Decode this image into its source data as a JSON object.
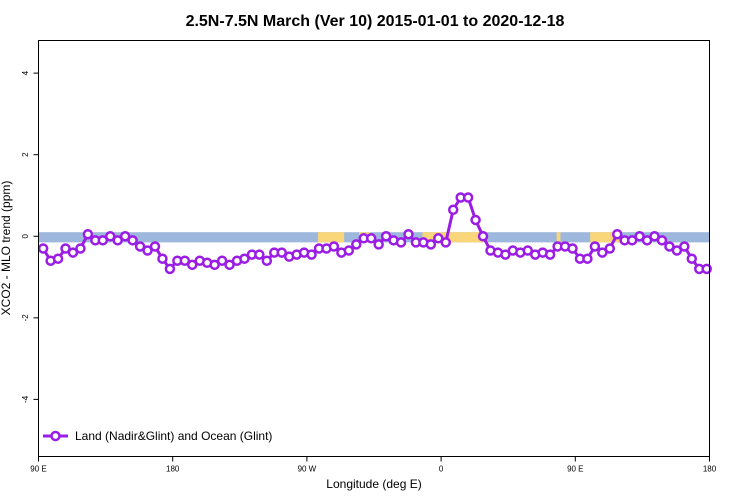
{
  "chart_data": {
    "type": "line",
    "title": "2.5N-7.5N March (Ver 10)   2015-01-01 to 2020-12-18",
    "xlabel": "Longitude (deg E)",
    "ylabel": "XCO2 - MLO trend (ppm)",
    "xlim": [
      90,
      450
    ],
    "ylim": [
      -5.4,
      4.8
    ],
    "x_ticks": [
      {
        "value": 90,
        "label": "90 E"
      },
      {
        "value": 162,
        "label": "180"
      },
      {
        "value": 234,
        "label": "90 W"
      },
      {
        "value": 306,
        "label": "0"
      },
      {
        "value": 378,
        "label": "90 E"
      },
      {
        "value": 450,
        "label": "180"
      }
    ],
    "y_ticks": [
      {
        "value": 4,
        "label": "4"
      },
      {
        "value": 2,
        "label": "2"
      },
      {
        "value": 0,
        "label": "0"
      },
      {
        "value": -2,
        "label": "-2"
      },
      {
        "value": -4,
        "label": "-4"
      }
    ],
    "map_strip": {
      "y_range": [
        -0.15,
        0.1
      ],
      "ocean_color": "#9db8dc",
      "land_color": "#fad67a",
      "land_spans": [
        [
          240,
          254
        ],
        [
          262,
          268
        ],
        [
          296,
          330
        ],
        [
          368,
          370
        ],
        [
          386,
          402
        ]
      ]
    },
    "series": [
      {
        "name": "Land (Nadir&Glint) and Ocean (Glint)",
        "color": "#9b1de4",
        "x": [
          92.5,
          96.5,
          100.5,
          104.5,
          108.5,
          112.5,
          116.5,
          120.5,
          124.5,
          128.5,
          132.5,
          136.5,
          140.5,
          144.5,
          148.5,
          152.5,
          156.5,
          160.5,
          164.5,
          168.5,
          172.5,
          176.5,
          180.5,
          184.5,
          188.5,
          192.5,
          196.5,
          200.5,
          204.5,
          208.5,
          212.5,
          216.5,
          220.5,
          224.5,
          228.5,
          232.5,
          236.5,
          240.5,
          244.5,
          248.5,
          252.5,
          256.5,
          260.5,
          264.5,
          268.5,
          272.5,
          276.5,
          280.5,
          284.5,
          288.5,
          292.5,
          296.5,
          300.5,
          304.5,
          308.5,
          312.5,
          316.5,
          320.5,
          324.5,
          328.5,
          332.5,
          336.5,
          340.5,
          344.5,
          348.5,
          352.5,
          356.5,
          360.5,
          364.5,
          368.5,
          372.5,
          376.5,
          380.5,
          384.5,
          388.5,
          392.5,
          396.5,
          400.5,
          404.5,
          408.5,
          412.5,
          416.5,
          420.5,
          424.5,
          428.5,
          432.5,
          436.5,
          440.5,
          444.5,
          448.5
        ],
        "y": [
          -0.3,
          -0.6,
          -0.55,
          -0.3,
          -0.4,
          -0.3,
          0.05,
          -0.1,
          -0.1,
          0.0,
          -0.1,
          0.0,
          -0.1,
          -0.25,
          -0.35,
          -0.25,
          -0.55,
          -0.8,
          -0.6,
          -0.6,
          -0.7,
          -0.6,
          -0.65,
          -0.7,
          -0.6,
          -0.7,
          -0.6,
          -0.55,
          -0.45,
          -0.45,
          -0.6,
          -0.4,
          -0.4,
          -0.5,
          -0.45,
          -0.4,
          -0.45,
          -0.3,
          -0.3,
          -0.25,
          -0.4,
          -0.35,
          -0.2,
          -0.05,
          -0.05,
          -0.2,
          0.0,
          -0.1,
          -0.15,
          0.05,
          -0.15,
          -0.15,
          -0.2,
          -0.05,
          -0.15,
          0.65,
          0.95,
          0.95,
          0.4,
          0.0,
          -0.35,
          -0.4,
          -0.45,
          -0.35,
          -0.4,
          -0.35,
          -0.45,
          -0.4,
          -0.45,
          -0.25,
          -0.25,
          -0.3,
          -0.55,
          -0.55,
          -0.25,
          -0.4,
          -0.3,
          0.05,
          -0.1,
          -0.1,
          0.0,
          -0.1,
          0.0,
          -0.1,
          -0.25,
          -0.35,
          -0.25,
          -0.55,
          -0.8,
          -0.8
        ]
      }
    ],
    "legend": {
      "position": "bottom-left"
    }
  }
}
